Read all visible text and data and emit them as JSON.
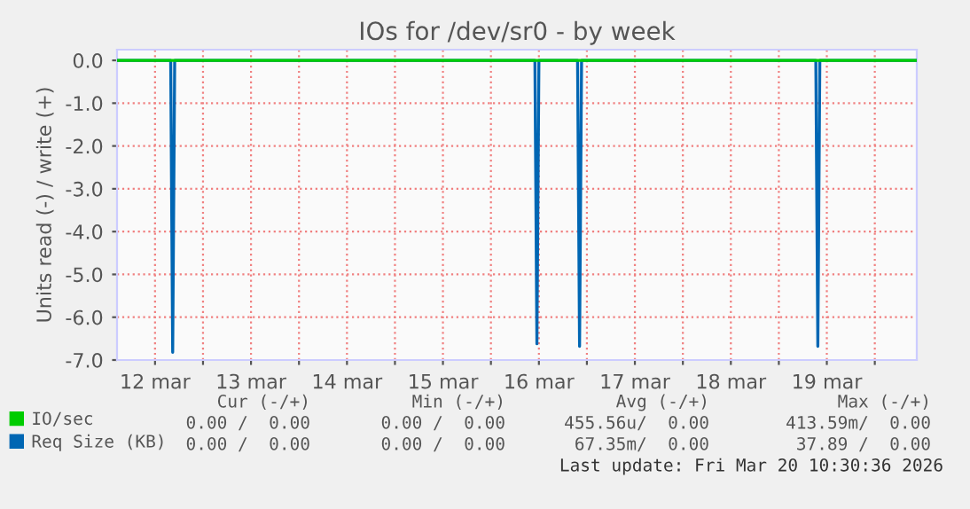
{
  "chart_data": {
    "type": "line",
    "title": "IOs for /dev/sr0 - by week",
    "ylabel": "Units read (-) / write (+)",
    "series": [
      {
        "name": "IO/sec",
        "color": "#00cc00",
        "x": [
          "2026-03-12T02:30",
          "2026-03-20T10:30"
        ],
        "values": [
          0,
          0
        ]
      },
      {
        "name": "Req Size (KB)",
        "color": "#0066b3",
        "x": [
          "2026-03-12T02:30",
          "2026-03-12T15:55",
          "2026-03-12T16:25",
          "2026-03-12T16:55",
          "2026-03-16T11:00",
          "2026-03-16T11:30",
          "2026-03-16T12:00",
          "2026-03-16T21:40",
          "2026-03-16T22:10",
          "2026-03-16T22:40",
          "2026-03-19T09:15",
          "2026-03-19T09:45",
          "2026-03-19T10:15",
          "2026-03-20T10:30"
        ],
        "values": [
          0,
          0,
          -6.82,
          0,
          0,
          -6.62,
          0,
          0,
          -6.68,
          0,
          0,
          -6.68,
          0,
          0
        ]
      }
    ],
    "xlim": [
      "2026-03-12T02:30",
      "2026-03-20T10:30"
    ],
    "xticks": [
      {
        "value": "2026-03-12T12:00",
        "label": "12 mar"
      },
      {
        "value": "2026-03-13T00:00",
        "label": null
      },
      {
        "value": "2026-03-13T12:00",
        "label": "13 mar"
      },
      {
        "value": "2026-03-14T00:00",
        "label": null
      },
      {
        "value": "2026-03-14T12:00",
        "label": "14 mar"
      },
      {
        "value": "2026-03-15T00:00",
        "label": null
      },
      {
        "value": "2026-03-15T12:00",
        "label": "15 mar"
      },
      {
        "value": "2026-03-16T00:00",
        "label": null
      },
      {
        "value": "2026-03-16T12:00",
        "label": "16 mar"
      },
      {
        "value": "2026-03-17T00:00",
        "label": null
      },
      {
        "value": "2026-03-17T12:00",
        "label": "17 mar"
      },
      {
        "value": "2026-03-18T00:00",
        "label": null
      },
      {
        "value": "2026-03-18T12:00",
        "label": "18 mar"
      },
      {
        "value": "2026-03-19T00:00",
        "label": null
      },
      {
        "value": "2026-03-19T12:00",
        "label": "19 mar"
      },
      {
        "value": "2026-03-20T00:00",
        "label": null
      }
    ],
    "ylim": [
      -7,
      0.25
    ],
    "yticks": [
      {
        "value": -7,
        "label": "-7.0"
      },
      {
        "value": -6,
        "label": "-6.0"
      },
      {
        "value": -5,
        "label": "-5.0"
      },
      {
        "value": -4,
        "label": "-4.0"
      },
      {
        "value": -3,
        "label": "-3.0"
      },
      {
        "value": -2,
        "label": "-2.0"
      },
      {
        "value": -1,
        "label": "-1.0"
      },
      {
        "value": 0,
        "label": "0.0"
      }
    ],
    "grid": true,
    "legend": "bottom left",
    "annotations": [
      "Cur (-/+)",
      "Min (-/+)",
      "Avg (-/+)",
      "Max (-/+)",
      "0.00 /  0.00",
      "0.00 /  0.00",
      "455.56u/  0.00",
      "413.59m/  0.00",
      "0.00 /  0.00",
      "0.00 /  0.00",
      "67.35m/  0.00",
      "37.89 /  0.00",
      "Last update: Fri Mar 20 10:30:36 2026"
    ]
  }
}
